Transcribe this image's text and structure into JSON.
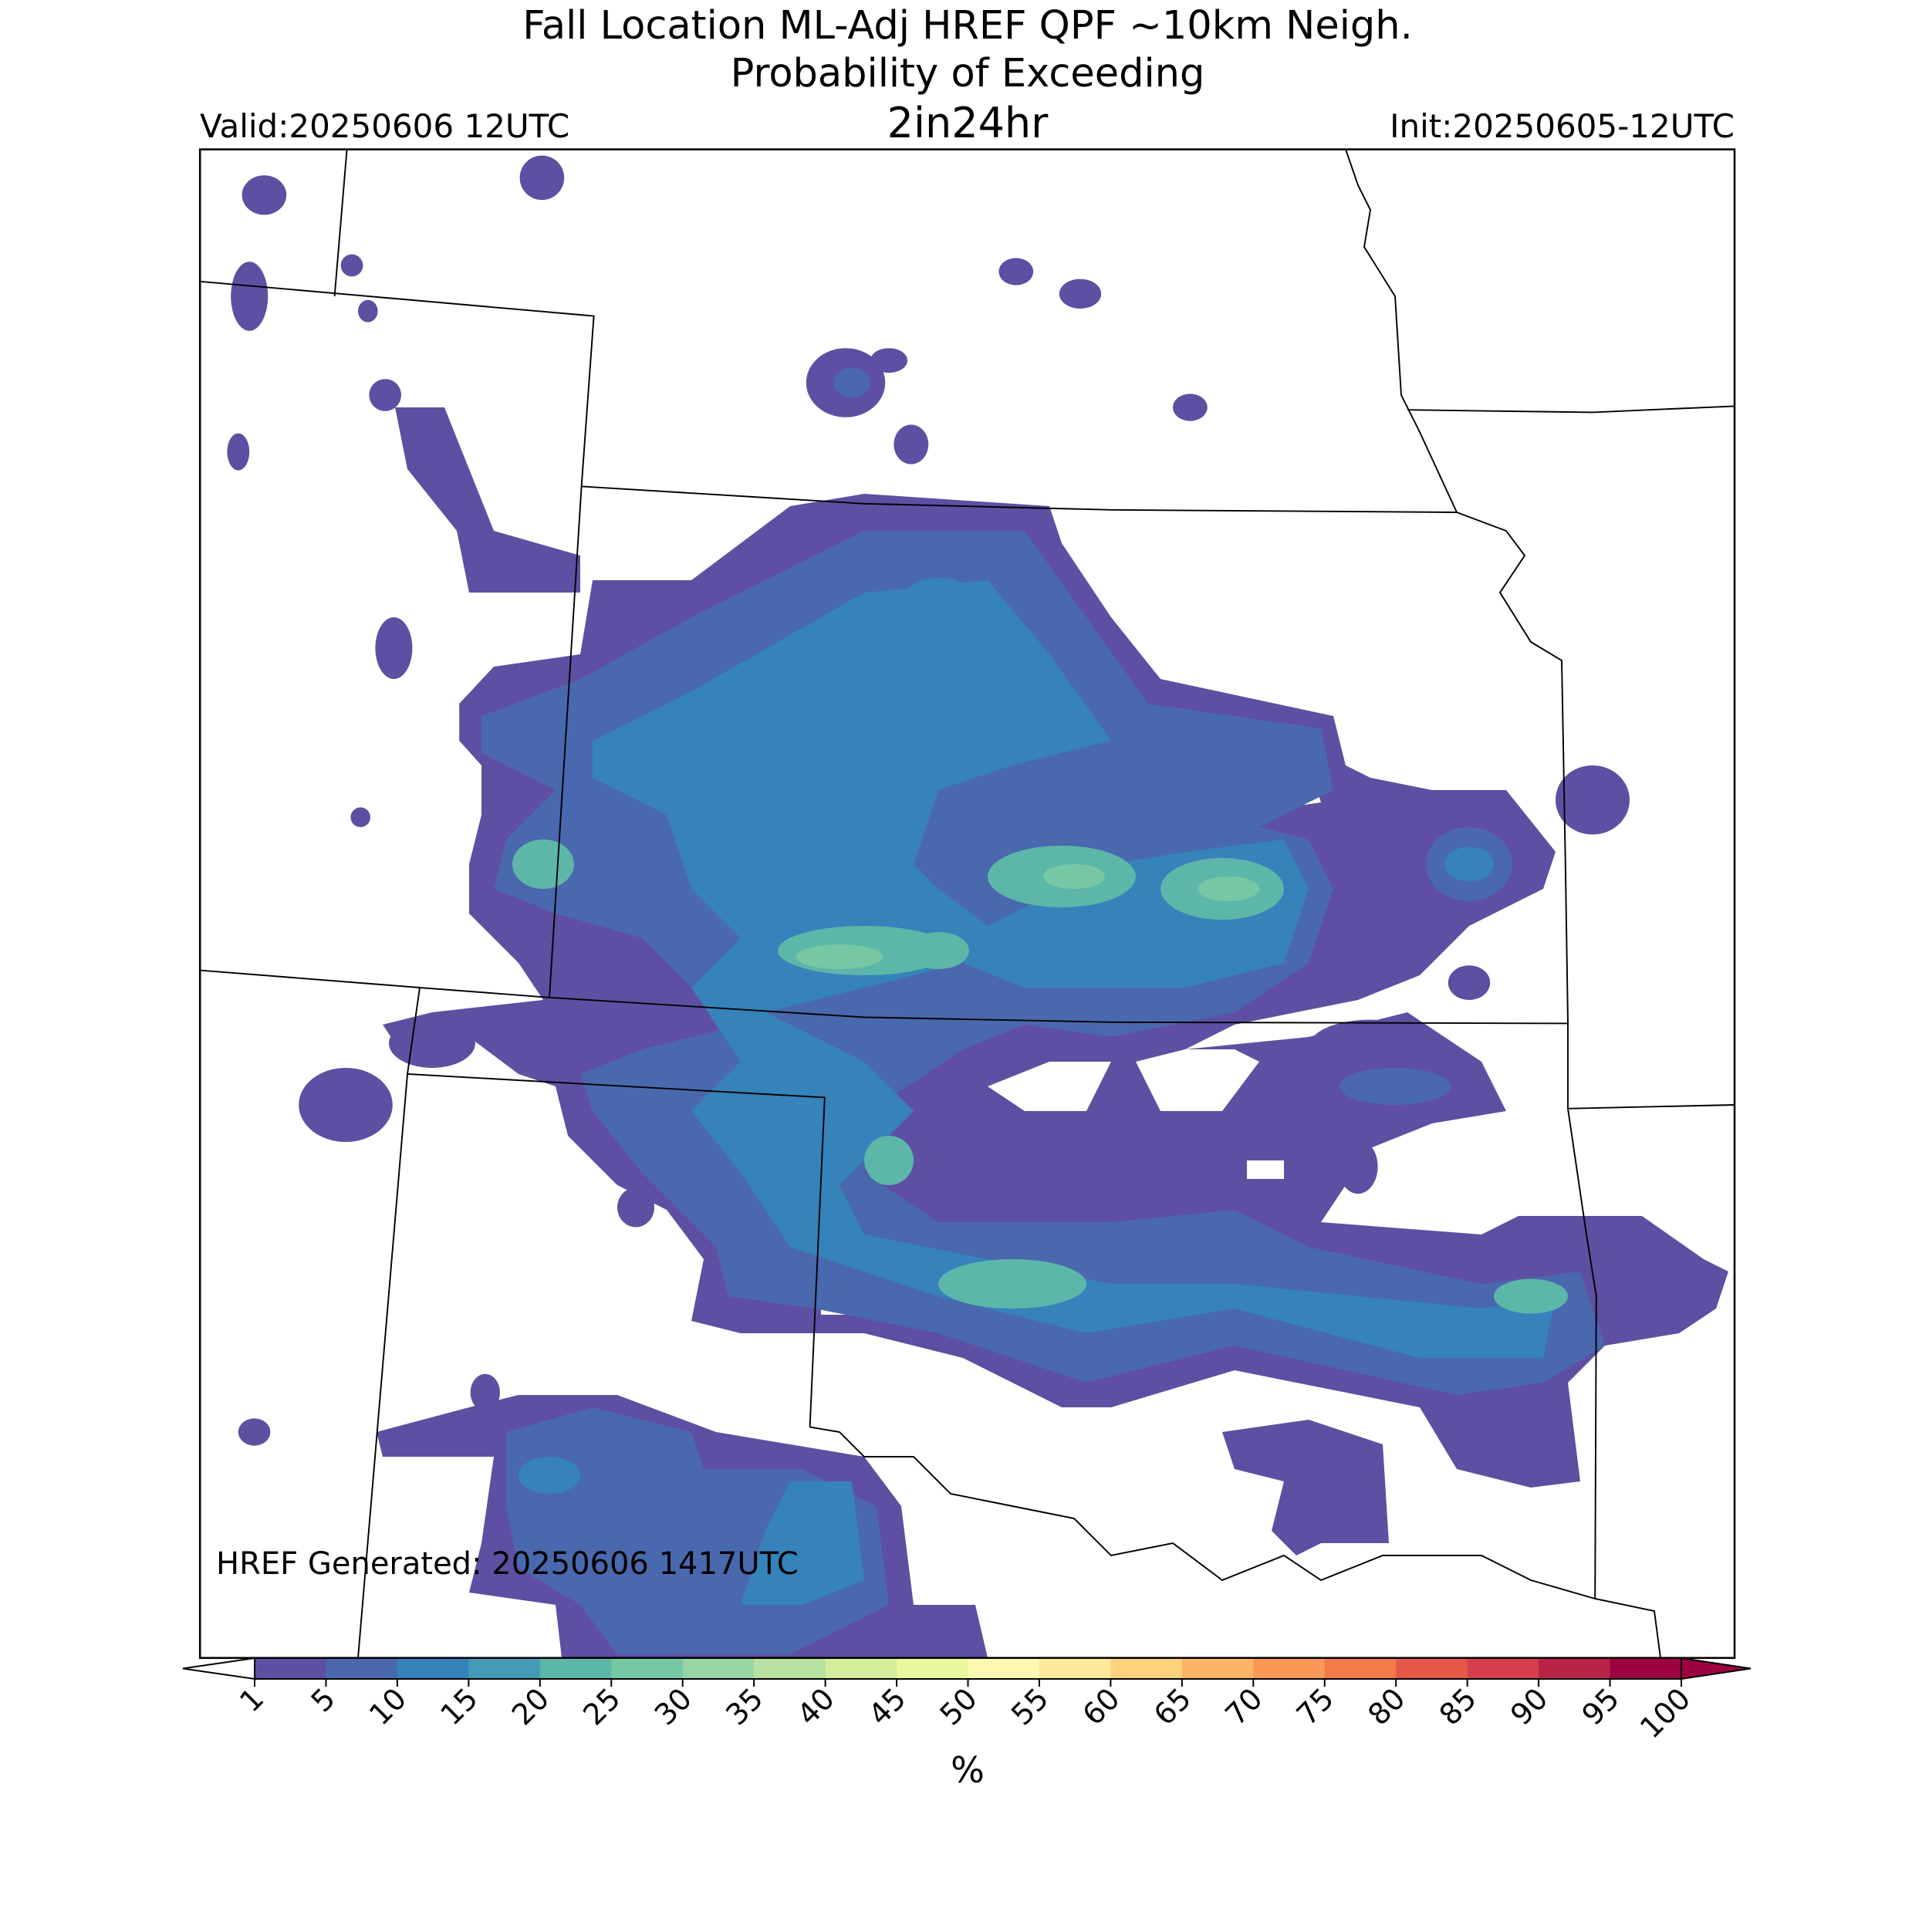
{
  "title": [
    "Fall Location ML-Adj HREF QPF ~10km Neigh.",
    "Probability of Exceeding"
  ],
  "subtitle": "2in24hr",
  "valid": "Valid:20250606 12UTC",
  "init": "Init:20250605-12UTC",
  "generated": "HREF Generated: 20250606 1417UTC",
  "colorbar": {
    "label": "%",
    "ticks": [
      1,
      5,
      10,
      15,
      20,
      25,
      30,
      35,
      40,
      45,
      50,
      55,
      60,
      65,
      70,
      75,
      80,
      85,
      90,
      95,
      100
    ],
    "colors": [
      "#5e4fa2",
      "#4a68ae",
      "#3682ba",
      "#439bb5",
      "#5db7a9",
      "#76c8a5",
      "#98d5a4",
      "#b7e2a1",
      "#d4ed9b",
      "#eaf79e",
      "#fbf8b0",
      "#fee89a",
      "#fed17e",
      "#fdb466",
      "#fa9857",
      "#f47a4a",
      "#e65848",
      "#d6404e",
      "#bb2248",
      "#9e0142"
    ],
    "under_color": "#ffffff",
    "over_color": "#9e0142"
  }
}
